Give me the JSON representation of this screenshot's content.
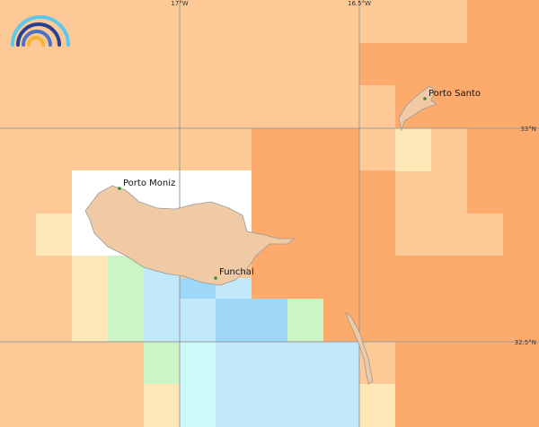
{
  "graticule": {
    "longitudes": [
      "17°W",
      "16.5°W"
    ],
    "latitudes": [
      "33°N",
      "32.5°N"
    ]
  },
  "places": [
    {
      "name": "Porto Moniz"
    },
    {
      "name": "Funchal"
    },
    {
      "name": "Porto Santo"
    }
  ]
}
